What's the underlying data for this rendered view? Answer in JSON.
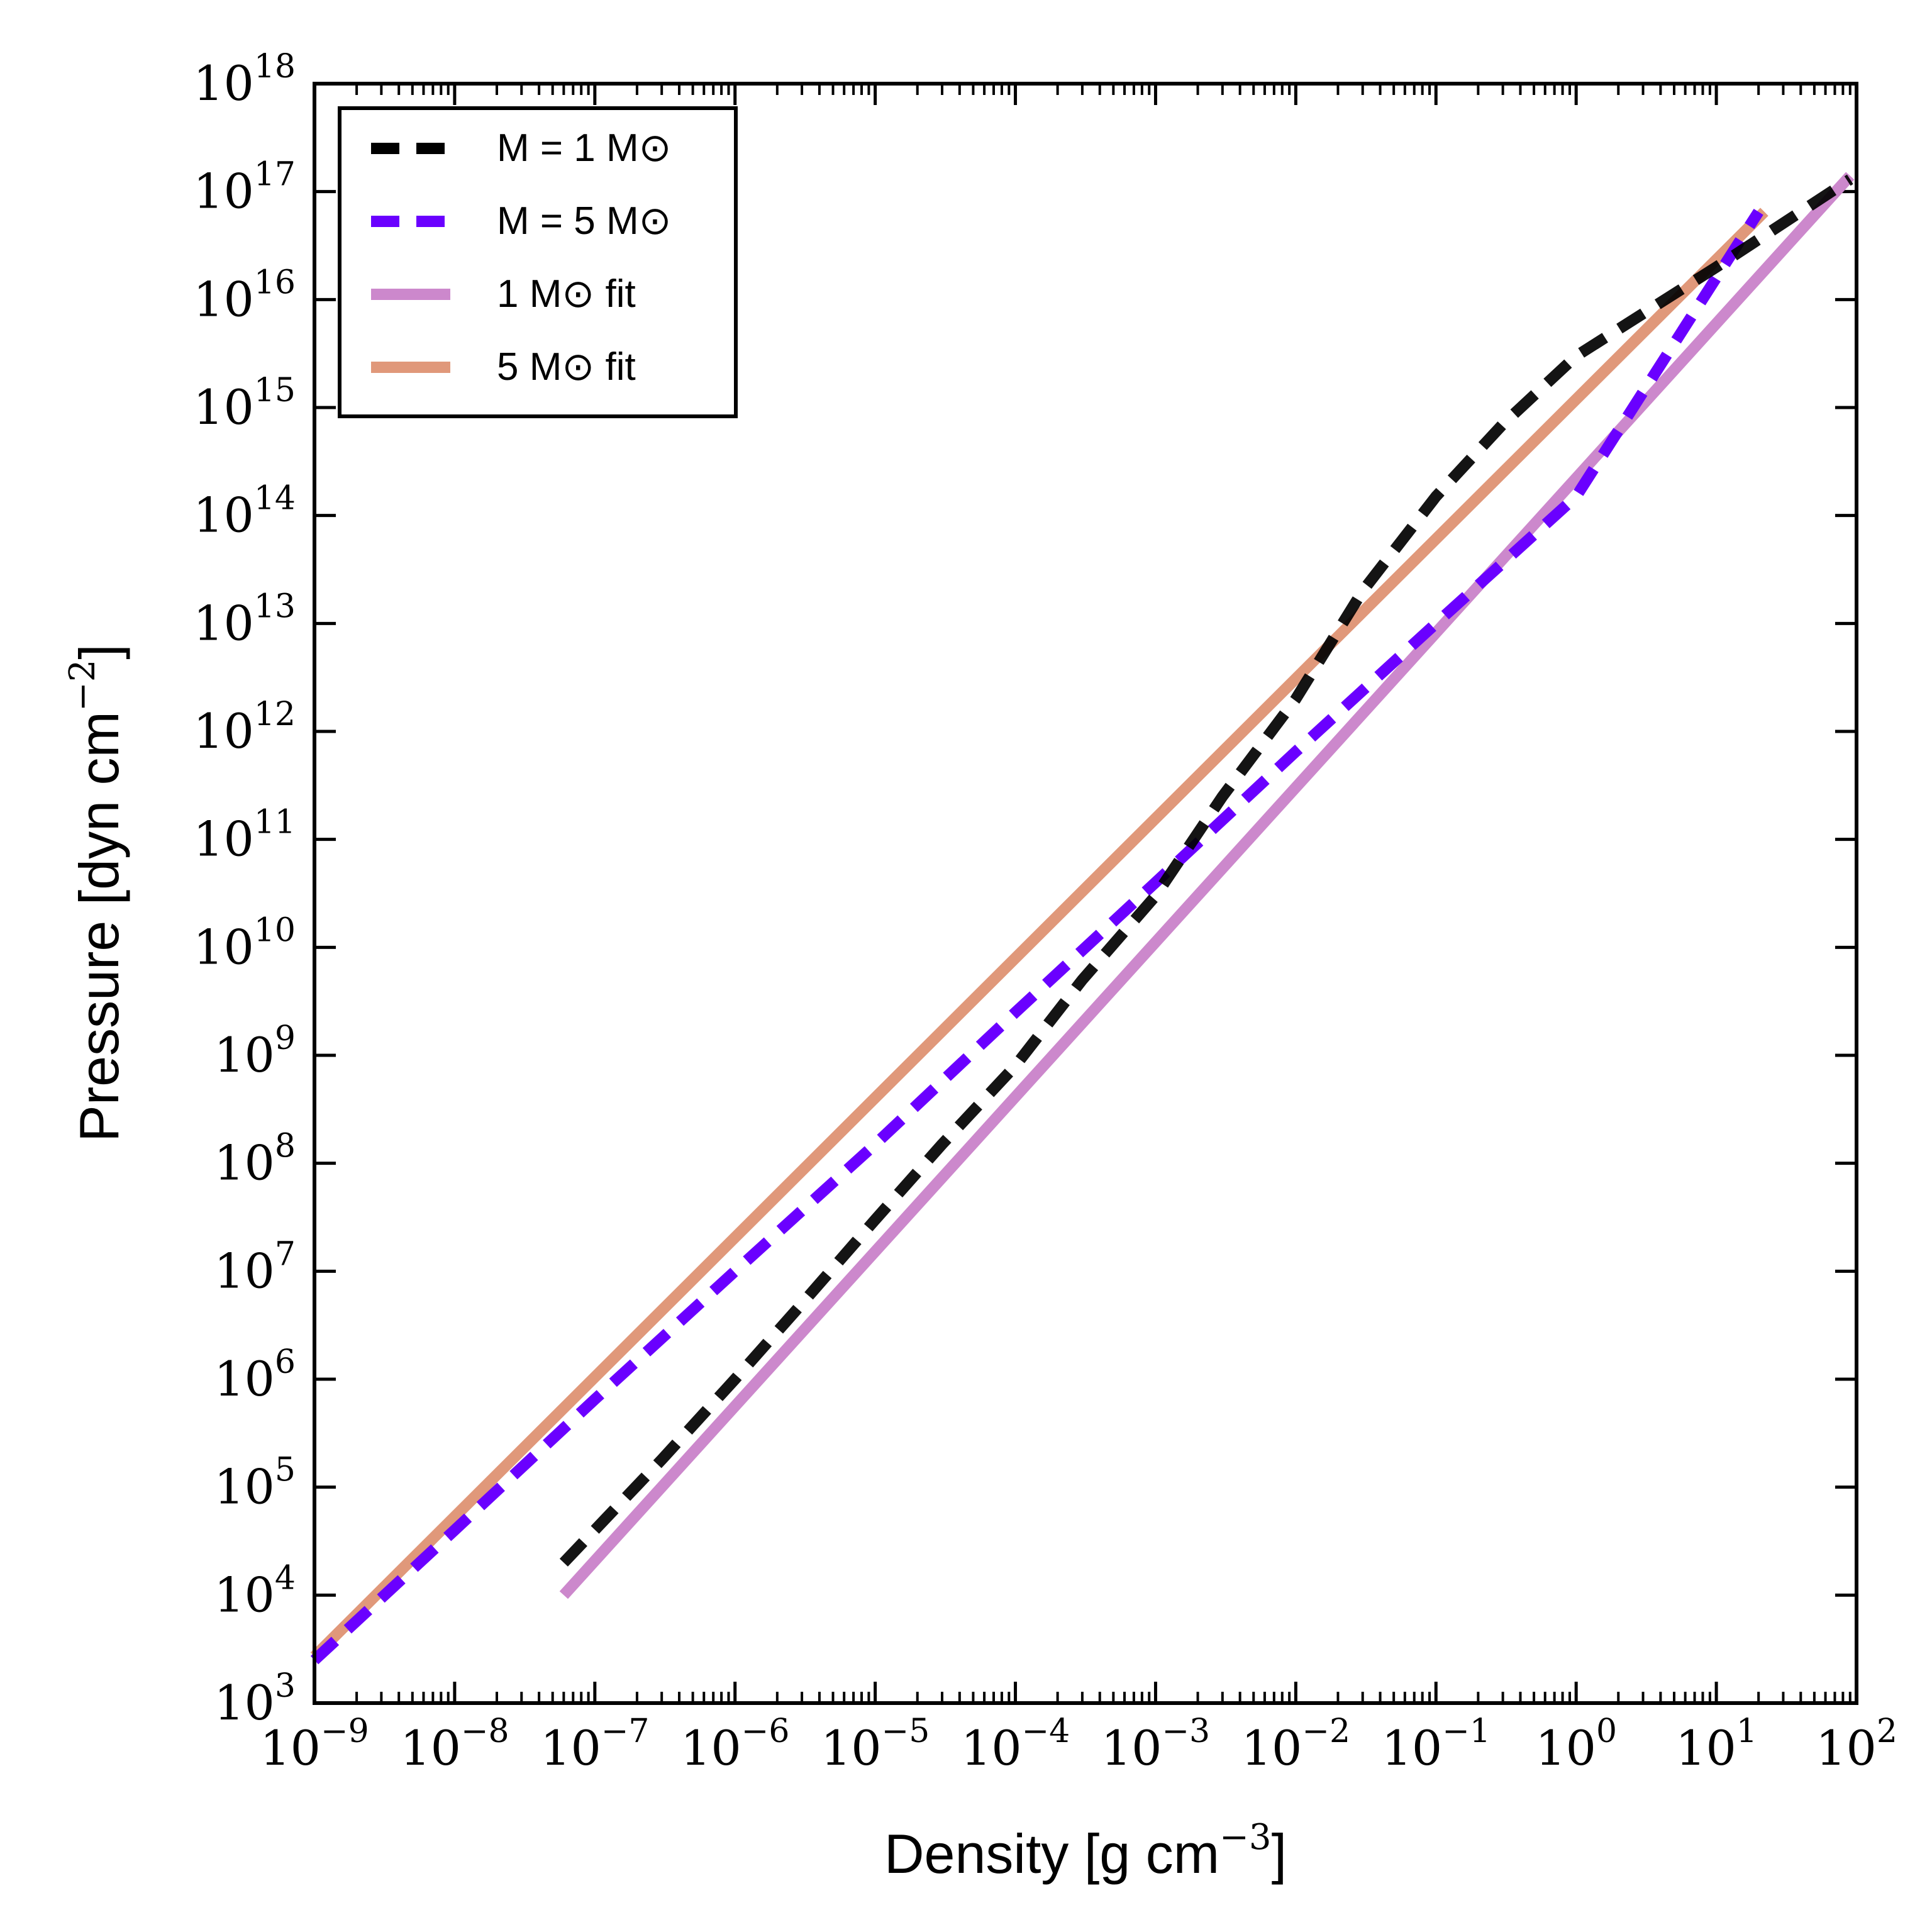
{
  "chart_data": {
    "type": "line",
    "title": "",
    "xlabel": "Density [g cm",
    "xlabel_exp": "−3",
    "xlabel_close": "]",
    "ylabel": "Pressure [dyn cm",
    "ylabel_exp": "−2",
    "ylabel_close": "]",
    "xscale": "log",
    "yscale": "log",
    "xlim": [
      1e-09,
      100
    ],
    "ylim": [
      1000,
      1e+18
    ],
    "grid": false,
    "legend_position": "top-left",
    "x_ticks": [
      {
        "base": "10",
        "exp": "−9"
      },
      {
        "base": "10",
        "exp": "−8"
      },
      {
        "base": "10",
        "exp": "−7"
      },
      {
        "base": "10",
        "exp": "−6"
      },
      {
        "base": "10",
        "exp": "−5"
      },
      {
        "base": "10",
        "exp": "−4"
      },
      {
        "base": "10",
        "exp": "−3"
      },
      {
        "base": "10",
        "exp": "−2"
      },
      {
        "base": "10",
        "exp": "−1"
      },
      {
        "base": "10",
        "exp": "0"
      },
      {
        "base": "10",
        "exp": "1"
      },
      {
        "base": "10",
        "exp": "2"
      }
    ],
    "y_ticks": [
      {
        "base": "10",
        "exp": "3"
      },
      {
        "base": "10",
        "exp": "4"
      },
      {
        "base": "10",
        "exp": "5"
      },
      {
        "base": "10",
        "exp": "6"
      },
      {
        "base": "10",
        "exp": "7"
      },
      {
        "base": "10",
        "exp": "8"
      },
      {
        "base": "10",
        "exp": "9"
      },
      {
        "base": "10",
        "exp": "10"
      },
      {
        "base": "10",
        "exp": "11"
      },
      {
        "base": "10",
        "exp": "12"
      },
      {
        "base": "10",
        "exp": "13"
      },
      {
        "base": "10",
        "exp": "14"
      },
      {
        "base": "10",
        "exp": "15"
      },
      {
        "base": "10",
        "exp": "16"
      },
      {
        "base": "10",
        "exp": "17"
      },
      {
        "base": "10",
        "exp": "18"
      }
    ],
    "series": [
      {
        "name": "M = 1 M⊙",
        "color": "#000000",
        "style": "dashed",
        "x": [
          6e-08,
          3e-07,
          1e-06,
          3e-06,
          1e-05,
          3e-05,
          0.0001,
          0.0003,
          0.001,
          0.003,
          0.01,
          0.03,
          0.1,
          0.3,
          1,
          10,
          90
        ],
        "y": [
          20000.0,
          180000.0,
          1000000.0,
          5000000.0,
          30000000.0,
          150000000.0,
          800000000.0,
          5000000000.0,
          30000000000.0,
          250000000000.0,
          2000000000000.0,
          20000000000000.0,
          150000000000000.0,
          700000000000000.0,
          3000000000000000.0,
          2e+16,
          1.3e+17
        ]
      },
      {
        "name": "M = 5 M⊙",
        "color": "#6a00ff",
        "style": "dashed",
        "x": [
          1e-09,
          1e-08,
          1e-07,
          1e-06,
          1e-05,
          0.0001,
          0.001,
          0.01,
          0.1,
          1,
          20
        ],
        "y": [
          2500.0,
          40000.0,
          650000.0,
          10000000.0,
          150000000.0,
          2500000000.0,
          40000000000.0,
          650000000000.0,
          10000000000000.0,
          150000000000000.0,
          6.5e+16
        ]
      },
      {
        "name": "1 M⊙ fit",
        "color": "#cc88cc",
        "style": "solid",
        "x": [
          6e-08,
          90
        ],
        "y": [
          10000.0,
          1.4e+17
        ]
      },
      {
        "name": "5 M⊙ fit",
        "color": "#e0987a",
        "style": "solid",
        "x": [
          1e-09,
          22
        ],
        "y": [
          2700.0,
          6.5e+16
        ]
      }
    ]
  }
}
